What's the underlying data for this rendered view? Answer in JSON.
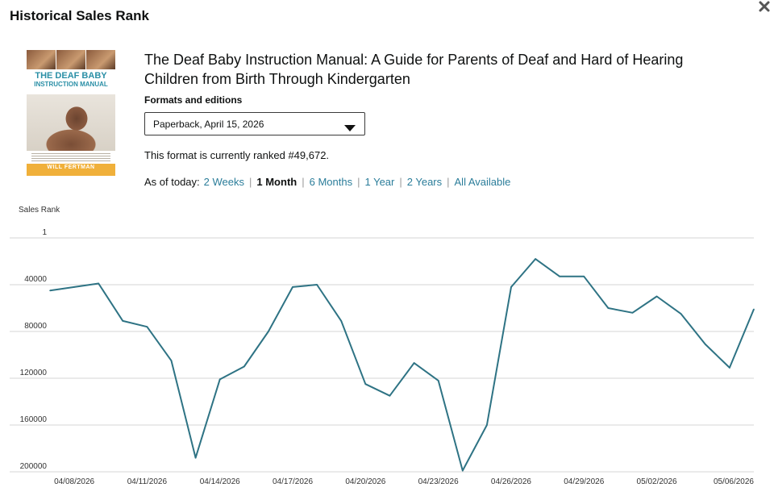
{
  "header": {
    "title": "Historical Sales Rank"
  },
  "book": {
    "title": "The Deaf Baby Instruction Manual: A Guide for Parents of Deaf and Hard of Hearing Children from Birth Through Kindergarten",
    "cover": {
      "title_line1": "THE DEAF BABY",
      "title_line2": "INSTRUCTION MANUAL",
      "author": "WILL FERTMAN"
    }
  },
  "formats": {
    "label": "Formats and editions",
    "selected": "Paperback, April 15, 2026"
  },
  "rank_text": "This format is currently ranked #49,672.",
  "range": {
    "label": "As of today:",
    "options": [
      {
        "label": "2 Weeks",
        "active": false
      },
      {
        "label": "1 Month",
        "active": true
      },
      {
        "label": "6 Months",
        "active": false
      },
      {
        "label": "1 Year",
        "active": false
      },
      {
        "label": "2 Years",
        "active": false
      },
      {
        "label": "All Available",
        "active": false
      }
    ]
  },
  "colors": {
    "line": "#2e7384",
    "link": "#2b7d9a",
    "grid": "#d5d5d5"
  },
  "chart_data": {
    "type": "line",
    "ylabel": "Sales Rank",
    "y_inverted": true,
    "ylim": [
      1,
      200000
    ],
    "yticks": [
      "1",
      "40000",
      "80000",
      "120000",
      "160000",
      "200000"
    ],
    "ytick_values": [
      1,
      40000,
      80000,
      120000,
      160000,
      200000
    ],
    "xticks": [
      "04/08/2026",
      "04/11/2026",
      "04/14/2026",
      "04/17/2026",
      "04/20/2026",
      "04/23/2026",
      "04/26/2026",
      "04/29/2026",
      "05/02/2026",
      "05/06/2026"
    ],
    "grid": "horizontal",
    "series": [
      {
        "x": [
          "04/07/2026",
          "04/08/2026",
          "04/09/2026",
          "04/10/2026",
          "04/11/2026",
          "04/12/2026",
          "04/13/2026",
          "04/14/2026",
          "04/15/2026",
          "04/16/2026",
          "04/17/2026",
          "04/18/2026",
          "04/19/2026",
          "04/20/2026",
          "04/21/2026",
          "04/22/2026",
          "04/23/2026",
          "04/24/2026",
          "04/25/2026",
          "04/26/2026",
          "04/27/2026",
          "04/28/2026",
          "04/29/2026",
          "04/30/2026",
          "05/01/2026",
          "05/02/2026",
          "05/03/2026",
          "05/04/2026",
          "05/05/2026",
          "05/06/2026"
        ],
        "values": [
          45000,
          42000,
          39000,
          71000,
          76000,
          105000,
          188000,
          121000,
          110000,
          80000,
          42000,
          40000,
          71000,
          125000,
          135000,
          107000,
          122000,
          199000,
          160000,
          42000,
          18000,
          33000,
          33000,
          60000,
          64000,
          50000,
          65000,
          91000,
          111000,
          61000
        ]
      }
    ]
  }
}
